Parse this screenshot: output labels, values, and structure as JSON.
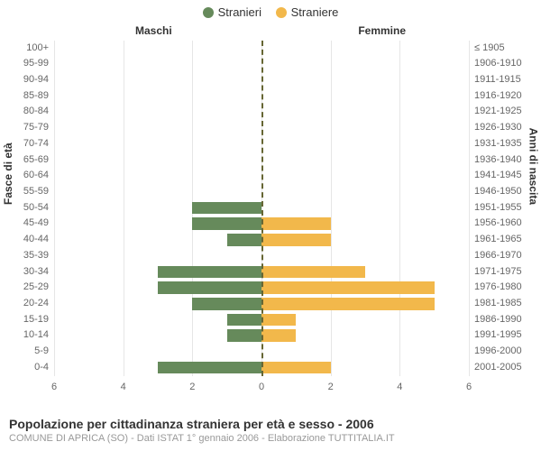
{
  "legend": {
    "male": {
      "label": "Stranieri",
      "color": "#668a5b"
    },
    "female": {
      "label": "Straniere",
      "color": "#f2b84b"
    }
  },
  "column_headers": {
    "male": "Maschi",
    "female": "Femmine"
  },
  "yaxis": {
    "left_title": "Fasce di età",
    "right_title": "Anni di nascita"
  },
  "chart": {
    "type": "population-pyramid",
    "background_color": "#ffffff",
    "grid_color": "#e6e6e6",
    "center_line_color": "#666633",
    "xmax": 6,
    "xticks": [
      6,
      4,
      2,
      0,
      2,
      4,
      6
    ],
    "unit_pct": 8.333,
    "rows": [
      {
        "age": "100+",
        "birth": "≤ 1905",
        "m": 0,
        "f": 0
      },
      {
        "age": "95-99",
        "birth": "1906-1910",
        "m": 0,
        "f": 0
      },
      {
        "age": "90-94",
        "birth": "1911-1915",
        "m": 0,
        "f": 0
      },
      {
        "age": "85-89",
        "birth": "1916-1920",
        "m": 0,
        "f": 0
      },
      {
        "age": "80-84",
        "birth": "1921-1925",
        "m": 0,
        "f": 0
      },
      {
        "age": "75-79",
        "birth": "1926-1930",
        "m": 0,
        "f": 0
      },
      {
        "age": "70-74",
        "birth": "1931-1935",
        "m": 0,
        "f": 0
      },
      {
        "age": "65-69",
        "birth": "1936-1940",
        "m": 0,
        "f": 0
      },
      {
        "age": "60-64",
        "birth": "1941-1945",
        "m": 0,
        "f": 0
      },
      {
        "age": "55-59",
        "birth": "1946-1950",
        "m": 0,
        "f": 0
      },
      {
        "age": "50-54",
        "birth": "1951-1955",
        "m": 2,
        "f": 0
      },
      {
        "age": "45-49",
        "birth": "1956-1960",
        "m": 2,
        "f": 2
      },
      {
        "age": "40-44",
        "birth": "1961-1965",
        "m": 1,
        "f": 2
      },
      {
        "age": "35-39",
        "birth": "1966-1970",
        "m": 0,
        "f": 0
      },
      {
        "age": "30-34",
        "birth": "1971-1975",
        "m": 3,
        "f": 3
      },
      {
        "age": "25-29",
        "birth": "1976-1980",
        "m": 3,
        "f": 5
      },
      {
        "age": "20-24",
        "birth": "1981-1985",
        "m": 2,
        "f": 5
      },
      {
        "age": "15-19",
        "birth": "1986-1990",
        "m": 1,
        "f": 1
      },
      {
        "age": "10-14",
        "birth": "1991-1995",
        "m": 1,
        "f": 1
      },
      {
        "age": "5-9",
        "birth": "1996-2000",
        "m": 0,
        "f": 0
      },
      {
        "age": "0-4",
        "birth": "2001-2005",
        "m": 3,
        "f": 2
      }
    ]
  },
  "footer": {
    "title": "Popolazione per cittadinanza straniera per età e sesso - 2006",
    "subtitle": "COMUNE DI APRICA (SO) - Dati ISTAT 1° gennaio 2006 - Elaborazione TUTTITALIA.IT"
  }
}
